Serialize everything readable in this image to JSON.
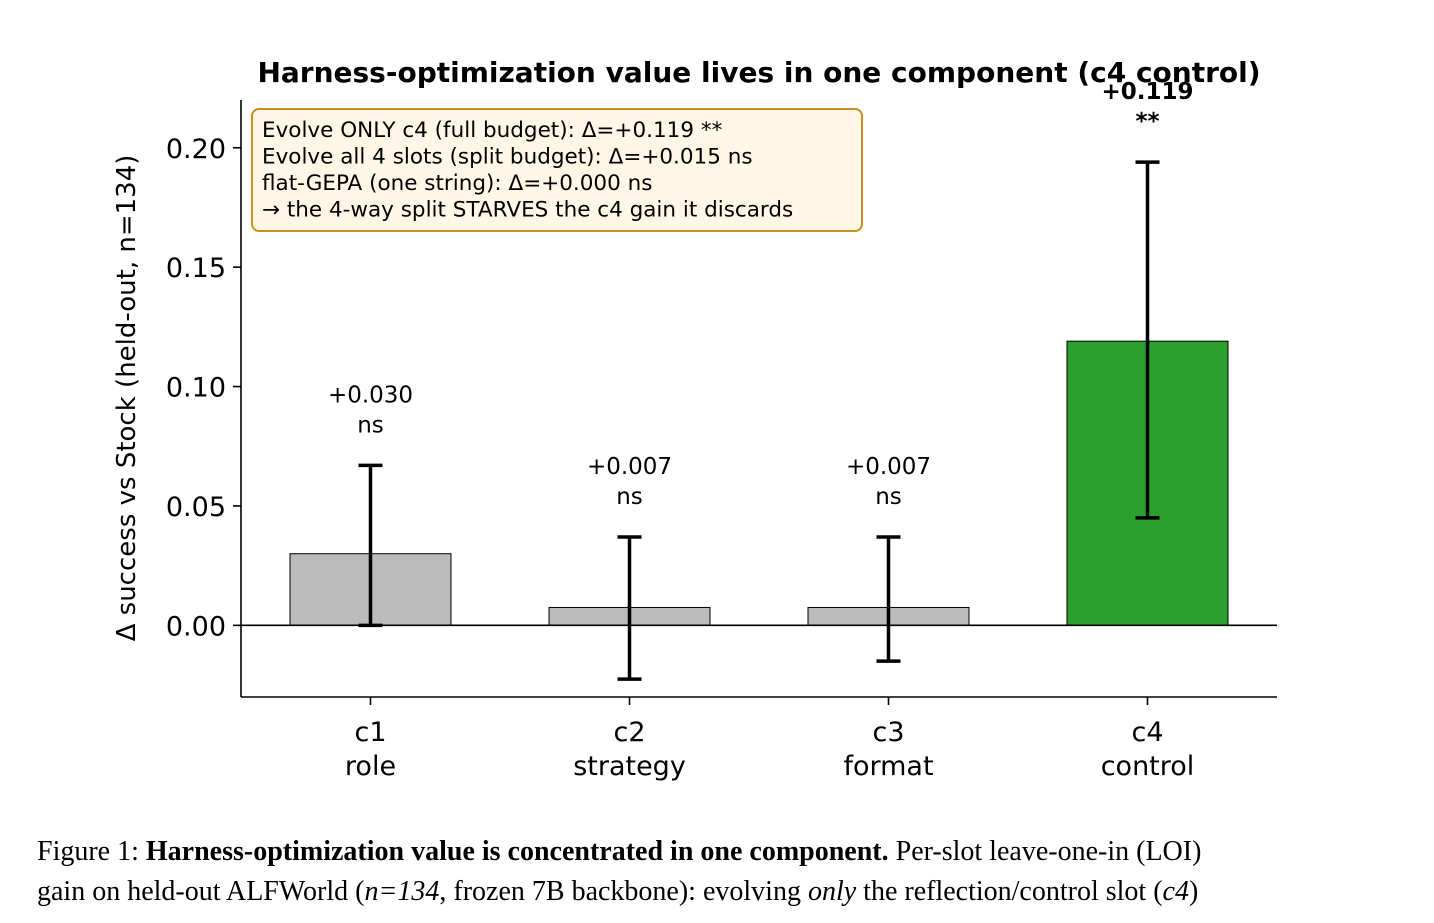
{
  "chart_data": {
    "type": "bar",
    "title": "Harness-optimization value lives in one component (c4 control)",
    "ylabel": "Δ success vs Stock (held-out, n=134)",
    "ylim": [
      -0.03,
      0.22
    ],
    "yticks": [
      0.0,
      0.05,
      0.1,
      0.15,
      0.2
    ],
    "ytick_labels": [
      "0.00",
      "0.05",
      "0.10",
      "0.15",
      "0.20"
    ],
    "categories": [
      {
        "code": "c1",
        "name": "role"
      },
      {
        "code": "c2",
        "name": "strategy"
      },
      {
        "code": "c3",
        "name": "format"
      },
      {
        "code": "c4",
        "name": "control"
      }
    ],
    "values": [
      0.03,
      0.0075,
      0.0075,
      0.119
    ],
    "ci": [
      [
        0.0,
        0.067
      ],
      [
        -0.0225,
        0.037
      ],
      [
        -0.015,
        0.037
      ],
      [
        0.045,
        0.194
      ]
    ],
    "bar_labels": [
      {
        "value": "+0.030",
        "sig": "ns",
        "bold": false
      },
      {
        "value": "+0.007",
        "sig": "ns",
        "bold": false
      },
      {
        "value": "+0.007",
        "sig": "ns",
        "bold": false
      },
      {
        "value": "+0.119",
        "sig": "**",
        "bold": true
      }
    ],
    "colors": [
      "#bbbbbb",
      "#bbbbbb",
      "#bbbbbb",
      "#2ca02c"
    ],
    "annotation_box": [
      "Evolve ONLY c4 (full budget): Δ=+0.119 **",
      "Evolve all 4 slots (split budget): Δ=+0.015 ns",
      "flat-GEPA (one string): Δ=+0.000 ns",
      "→ the 4-way split STARVES the c4 gain it discards"
    ],
    "grid": false
  },
  "caption": {
    "figure_label": "Figure 1:",
    "bold_title": "Harness-optimization value is concentrated in one component.",
    "line1_rest": "Per-slot leave-one-in (",
    "loi": "LOI",
    "line1_close": ")",
    "line2_a": "gain on held-out ALFWorld (",
    "n_eq": "n=134",
    "line2_b": ", frozen 7B backbone): evolving ",
    "only": "only",
    "line2_c": " the reflection/control slot (",
    "c4": "c4",
    "line2_d": ")"
  }
}
